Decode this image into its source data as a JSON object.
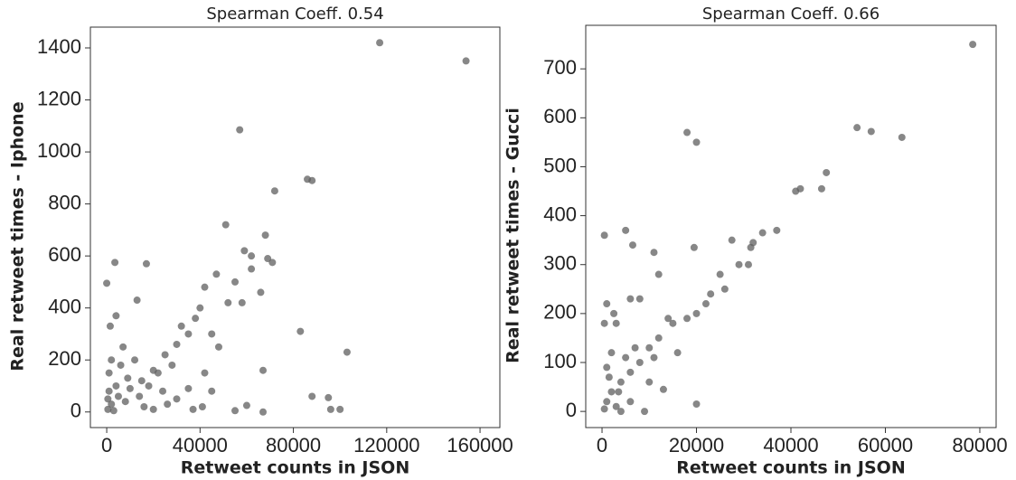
{
  "chart_data": [
    {
      "type": "scatter",
      "title": "Spearman Coeff. 0.54",
      "xlabel": "Retweet counts in JSON",
      "ylabel": "Real retweet times - Iphone",
      "color": "#5f5f5f",
      "xlim": [
        -7000,
        168500
      ],
      "ylim": [
        -60,
        1480
      ],
      "xticks": [
        0,
        40000,
        80000,
        120000,
        160000
      ],
      "yticks": [
        0,
        200,
        400,
        600,
        800,
        1000,
        1200,
        1400
      ],
      "x": [
        117000,
        154000,
        57000,
        86000,
        88000,
        72000,
        51000,
        3500,
        17000,
        0,
        59000,
        62000,
        68000,
        69000,
        71000,
        62000,
        47000,
        55000,
        42000,
        66000,
        13000,
        103000,
        83000,
        88000,
        95000,
        100000,
        96000,
        67000,
        67000,
        60000,
        55000,
        45000,
        41000,
        38000,
        35000,
        30000,
        25000,
        20000,
        15000,
        10000,
        5000,
        2000,
        1000,
        500,
        3000,
        8000,
        12000,
        18000,
        22000,
        28000,
        32000,
        40000,
        45000,
        48000,
        52000,
        58000,
        37000,
        30000,
        24000,
        7000,
        4000,
        1500,
        6000,
        9000,
        14000,
        16000,
        20000,
        26000,
        35000,
        42000,
        4000,
        2000,
        1000,
        500
      ],
      "values": [
        1420,
        1350,
        1085,
        895,
        890,
        850,
        720,
        575,
        570,
        495,
        620,
        600,
        680,
        590,
        575,
        550,
        530,
        500,
        480,
        460,
        430,
        230,
        310,
        60,
        55,
        10,
        10,
        0,
        160,
        25,
        5,
        80,
        20,
        360,
        300,
        260,
        220,
        160,
        120,
        90,
        60,
        30,
        150,
        10,
        5,
        40,
        200,
        100,
        150,
        180,
        330,
        400,
        300,
        250,
        420,
        420,
        10,
        50,
        80,
        250,
        370,
        330,
        180,
        130,
        60,
        20,
        10,
        30,
        90,
        150,
        100,
        200,
        80,
        50
      ]
    },
    {
      "type": "scatter",
      "title": "Spearman Coeff. 0.66",
      "xlabel": "Retweet counts in JSON",
      "ylabel": "Real retweet times - Gucci",
      "color": "#5f5f5f",
      "xlim": [
        -3450,
        83450
      ],
      "ylim": [
        -33,
        789
      ],
      "xticks": [
        0,
        20000,
        40000,
        60000,
        80000
      ],
      "yticks": [
        0,
        100,
        200,
        300,
        400,
        500,
        600,
        700
      ],
      "x": [
        78500,
        54000,
        57000,
        63500,
        18000,
        20000,
        47500,
        46500,
        41000,
        42000,
        37000,
        34000,
        32000,
        31500,
        27500,
        19500,
        11000,
        6500,
        5000,
        500,
        29000,
        31000,
        25000,
        23000,
        26000,
        22000,
        20000,
        18000,
        15000,
        12000,
        10000,
        8000,
        6000,
        4000,
        2000,
        1000,
        500,
        3000,
        20000,
        14000,
        12000,
        8000,
        6000,
        3000,
        2500,
        1000,
        500,
        10000,
        13000,
        9000,
        7000,
        5000,
        2000,
        1000,
        16000,
        11000,
        3500,
        1500,
        6000,
        4000
      ],
      "values": [
        750,
        580,
        572,
        560,
        570,
        550,
        488,
        455,
        450,
        455,
        370,
        365,
        345,
        335,
        350,
        335,
        325,
        340,
        370,
        360,
        300,
        300,
        280,
        240,
        250,
        220,
        200,
        190,
        180,
        150,
        130,
        100,
        80,
        60,
        40,
        20,
        5,
        10,
        15,
        190,
        280,
        230,
        230,
        180,
        200,
        220,
        180,
        60,
        45,
        0,
        130,
        110,
        120,
        90,
        120,
        110,
        40,
        70,
        20,
        0
      ]
    }
  ]
}
